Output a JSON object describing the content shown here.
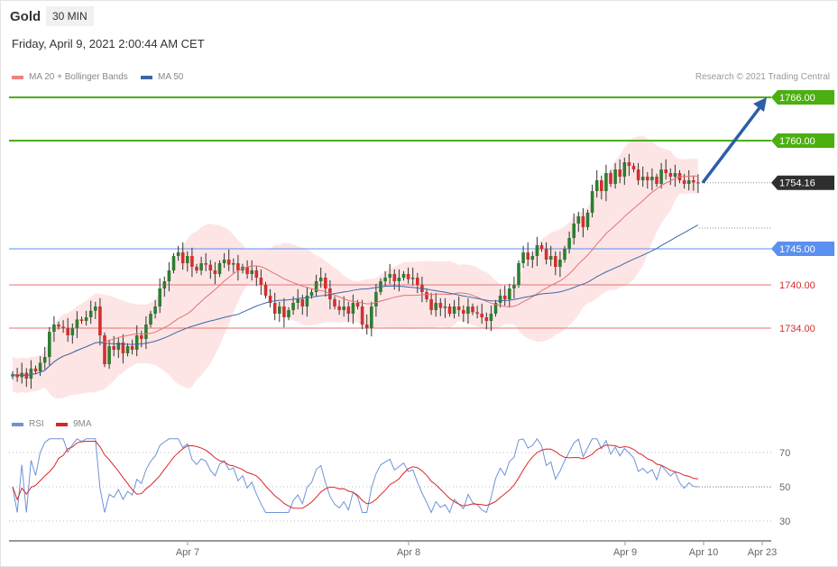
{
  "header": {
    "title": "Gold",
    "timeframe": "30 MIN",
    "datetime": "Friday, April 9, 2021 2:00:44 AM CET",
    "credit": "Research © 2021 Trading Central"
  },
  "legend": {
    "bollinger": "MA 20 + Bollinger Bands",
    "ma50": "MA 50",
    "rsi": "RSI",
    "rsi_ma": "9MA"
  },
  "colors": {
    "up": "#2e7d32",
    "down": "#d32f2f",
    "ma20": "#e57373",
    "band": "#fde0e0",
    "ma50": "#3d67a6",
    "resistance": "#4caf10",
    "support_blue": "#5b8ff0",
    "support_red": "#e57373",
    "last": "#2f2f2f",
    "rsi": "#6f93d8",
    "rsi_ma": "#d9262b",
    "arrow": "#2d5ea6"
  },
  "chart_data": {
    "type": "candlestick",
    "timeframe": "30 MIN",
    "x_tick_labels": [
      "Apr 7",
      "Apr 8",
      "Apr 9",
      "Apr 10",
      "Apr 23"
    ],
    "price_levels": [
      {
        "label": "1766.00",
        "value": 1766.0,
        "kind": "resistance"
      },
      {
        "label": "1760.00",
        "value": 1760.0,
        "kind": "resistance"
      },
      {
        "label": "1754.16",
        "value": 1754.16,
        "kind": "last"
      },
      {
        "label": "1745.00",
        "value": 1745.0,
        "kind": "support_blue"
      },
      {
        "label": "1740.00",
        "value": 1740.0,
        "kind": "support_red"
      },
      {
        "label": "1734.00",
        "value": 1734.0,
        "kind": "support_red"
      }
    ],
    "target_arrow": {
      "from": 1754.16,
      "to": 1766.0
    },
    "closes": [
      1727.6,
      1727.2,
      1727.8,
      1727.0,
      1728.4,
      1728.0,
      1729.2,
      1730.0,
      1733.5,
      1734.5,
      1734.2,
      1734.0,
      1733.0,
      1734.0,
      1735.2,
      1735.0,
      1735.5,
      1736.4,
      1737.0,
      1733.0,
      1729.0,
      1731.5,
      1731.0,
      1732.0,
      1730.5,
      1731.5,
      1731.0,
      1733.0,
      1732.5,
      1734.5,
      1736.0,
      1737.0,
      1739.5,
      1740.5,
      1742.0,
      1744.0,
      1744.5,
      1743.0,
      1744.0,
      1742.5,
      1742.0,
      1743.0,
      1742.8,
      1742.0,
      1741.5,
      1743.0,
      1743.5,
      1742.8,
      1743.0,
      1742.0,
      1742.5,
      1741.5,
      1742.0,
      1741.0,
      1740.0,
      1738.5,
      1737.5,
      1736.0,
      1737.0,
      1735.5,
      1736.5,
      1737.5,
      1738.0,
      1737.0,
      1738.5,
      1739.0,
      1740.5,
      1741.0,
      1739.5,
      1738.0,
      1737.0,
      1736.5,
      1737.0,
      1736.0,
      1737.5,
      1737.0,
      1734.5,
      1734.0,
      1737.0,
      1739.0,
      1740.5,
      1741.0,
      1741.5,
      1740.5,
      1741.0,
      1741.5,
      1740.8,
      1741.0,
      1740.0,
      1739.0,
      1738.0,
      1736.5,
      1737.5,
      1736.8,
      1737.0,
      1736.0,
      1737.0,
      1736.5,
      1736.0,
      1737.0,
      1736.2,
      1736.0,
      1735.5,
      1735.0,
      1736.0,
      1737.5,
      1738.5,
      1738.0,
      1739.5,
      1740.0,
      1743.0,
      1744.5,
      1743.5,
      1744.0,
      1745.5,
      1745.0,
      1743.5,
      1744.0,
      1742.5,
      1743.5,
      1745.0,
      1746.5,
      1748.5,
      1749.5,
      1748.0,
      1750.0,
      1753.0,
      1754.5,
      1753.0,
      1755.5,
      1754.0,
      1756.0,
      1755.0,
      1757.0,
      1756.5,
      1756.0,
      1754.5,
      1755.0,
      1754.5,
      1755.0,
      1754.0,
      1756.0,
      1755.5,
      1755.0,
      1755.5,
      1754.5,
      1754.0,
      1754.5,
      1754.2,
      1754.16
    ],
    "rsi_axis": {
      "ticks": [
        "70",
        "50",
        "30"
      ],
      "values": [
        70,
        50,
        30
      ]
    }
  }
}
